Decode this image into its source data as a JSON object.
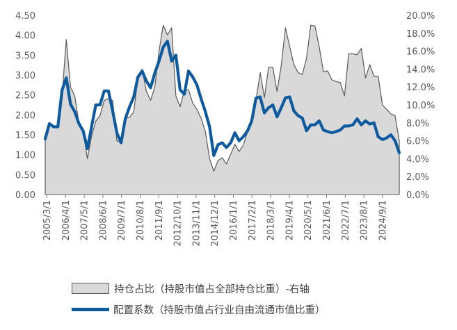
{
  "chart_data": {
    "type": "line",
    "x_tick_labels": [
      "2005/3/1",
      "2006/4/1",
      "2007/5/1",
      "2008/6/1",
      "2009/7/1",
      "2010/8/1",
      "2011/9/1",
      "2012/10/1",
      "2013/11/1",
      "2014/12/1",
      "2016/1/1",
      "2017/2/1",
      "2018/3/1",
      "2019/4/1",
      "2020/5/1",
      "2021/6/1",
      "2022/7/1",
      "2023/8/1",
      "2024/9/1"
    ],
    "y_left": {
      "min": 0,
      "max": 4.5,
      "ticks": [
        "0.00",
        "0.50",
        "1.00",
        "1.50",
        "2.00",
        "2.50",
        "3.00",
        "3.50",
        "4.00",
        "4.50"
      ]
    },
    "y_right": {
      "min": 0,
      "max": 20,
      "ticks": [
        "0.0%",
        "2.0%",
        "4.0%",
        "6.0%",
        "8.0%",
        "10.0%",
        "12.0%",
        "14.0%",
        "16.0%",
        "18.0%",
        "20.0%"
      ]
    },
    "grid": false,
    "legend_position": "bottom",
    "series": [
      {
        "name": "持仓占比（持股市值占全部持仓比重）-右轴",
        "kind": "area",
        "axis": "right",
        "color_fill": "#d9d9d9",
        "color_line": "#595959",
        "values": [
          6.2,
          7.8,
          7.5,
          7.6,
          11.0,
          17.3,
          12.0,
          11.0,
          8.0,
          7.1,
          4.0,
          6.5,
          8.2,
          8.8,
          10.5,
          10.7,
          10.5,
          6.0,
          5.8,
          8.5,
          8.6,
          9.2,
          13.0,
          14.0,
          11.5,
          10.5,
          12.0,
          16.0,
          18.9,
          17.8,
          18.6,
          11.0,
          9.8,
          11.6,
          11.7,
          10.2,
          9.5,
          8.5,
          7.0,
          4.0,
          2.6,
          3.8,
          4.1,
          3.4,
          4.5,
          5.6,
          4.8,
          5.5,
          7.0,
          8.0,
          10.5,
          13.6,
          10.8,
          14.2,
          14.2,
          11.5,
          14.4,
          18.6,
          16.5,
          14.5,
          13.6,
          13.4,
          15.2,
          18.9,
          18.8,
          16.5,
          13.7,
          13.8,
          12.8,
          12.6,
          12.5,
          11.0,
          15.7,
          15.7,
          15.6,
          16.3,
          13.0,
          14.5,
          13.2,
          13.2,
          10.0,
          9.5,
          9.0,
          8.8,
          6.0
        ]
      },
      {
        "name": "配置系数（持股市值占行业自由流通市值比重）",
        "kind": "line",
        "axis": "left",
        "color": "#0e5a9e",
        "values": [
          1.4,
          1.78,
          1.7,
          1.7,
          2.62,
          2.93,
          2.27,
          2.08,
          1.78,
          1.6,
          1.15,
          1.7,
          2.25,
          2.25,
          2.6,
          2.6,
          2.1,
          1.55,
          1.3,
          1.9,
          2.2,
          2.45,
          2.95,
          3.1,
          2.85,
          2.68,
          3.05,
          3.35,
          3.7,
          3.85,
          3.35,
          3.5,
          2.63,
          2.52,
          3.1,
          2.95,
          2.75,
          2.4,
          2.08,
          1.7,
          0.98,
          1.25,
          1.3,
          1.18,
          1.3,
          1.55,
          1.35,
          1.45,
          1.6,
          1.85,
          2.42,
          2.45,
          2.05,
          2.18,
          2.25,
          1.95,
          2.18,
          2.43,
          2.45,
          2.1,
          1.98,
          1.92,
          1.6,
          1.75,
          1.75,
          1.85,
          1.62,
          1.58,
          1.55,
          1.58,
          1.62,
          1.72,
          1.72,
          1.75,
          1.9,
          1.75,
          1.85,
          1.77,
          1.8,
          1.45,
          1.38,
          1.42,
          1.5,
          1.35,
          1.05
        ]
      }
    ]
  }
}
